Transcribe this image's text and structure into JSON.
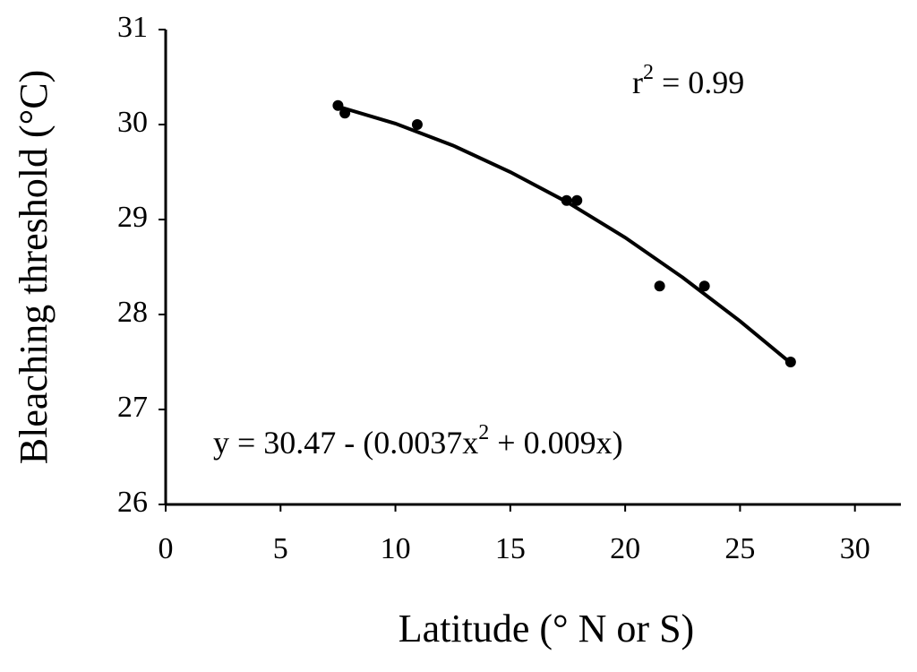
{
  "chart_data": {
    "type": "scatter",
    "x_label": "Latitude (° N or S)",
    "y_label": "Bleaching threshold (°C)",
    "xlim": [
      0,
      32
    ],
    "ylim": [
      26,
      31
    ],
    "xticks": [
      0,
      5,
      10,
      15,
      20,
      25,
      30
    ],
    "yticks": [
      26,
      27,
      28,
      29,
      30,
      31
    ],
    "grid": false,
    "series": [
      {
        "color": "#000000",
        "x": [
          7.5,
          7.8,
          10.95,
          17.45,
          17.9,
          21.5,
          23.45,
          27.2
        ],
        "values": [
          30.2,
          30.12,
          30.0,
          29.2,
          29.2,
          28.3,
          28.3,
          27.5
        ]
      }
    ],
    "fit": {
      "color": "#000000",
      "x": [
        7.5,
        10,
        12.5,
        15,
        17.5,
        20,
        22.5,
        25,
        27.3
      ],
      "values": [
        30.19,
        30.01,
        29.78,
        29.5,
        29.18,
        28.81,
        28.39,
        27.93,
        27.47
      ]
    },
    "annotations": [
      {
        "parts": [
          "r",
          "2",
          " = 0.99"
        ]
      },
      {
        "parts": [
          "y = 30.47 - (0.0037x",
          "2",
          " + 0.009x)"
        ]
      }
    ]
  }
}
